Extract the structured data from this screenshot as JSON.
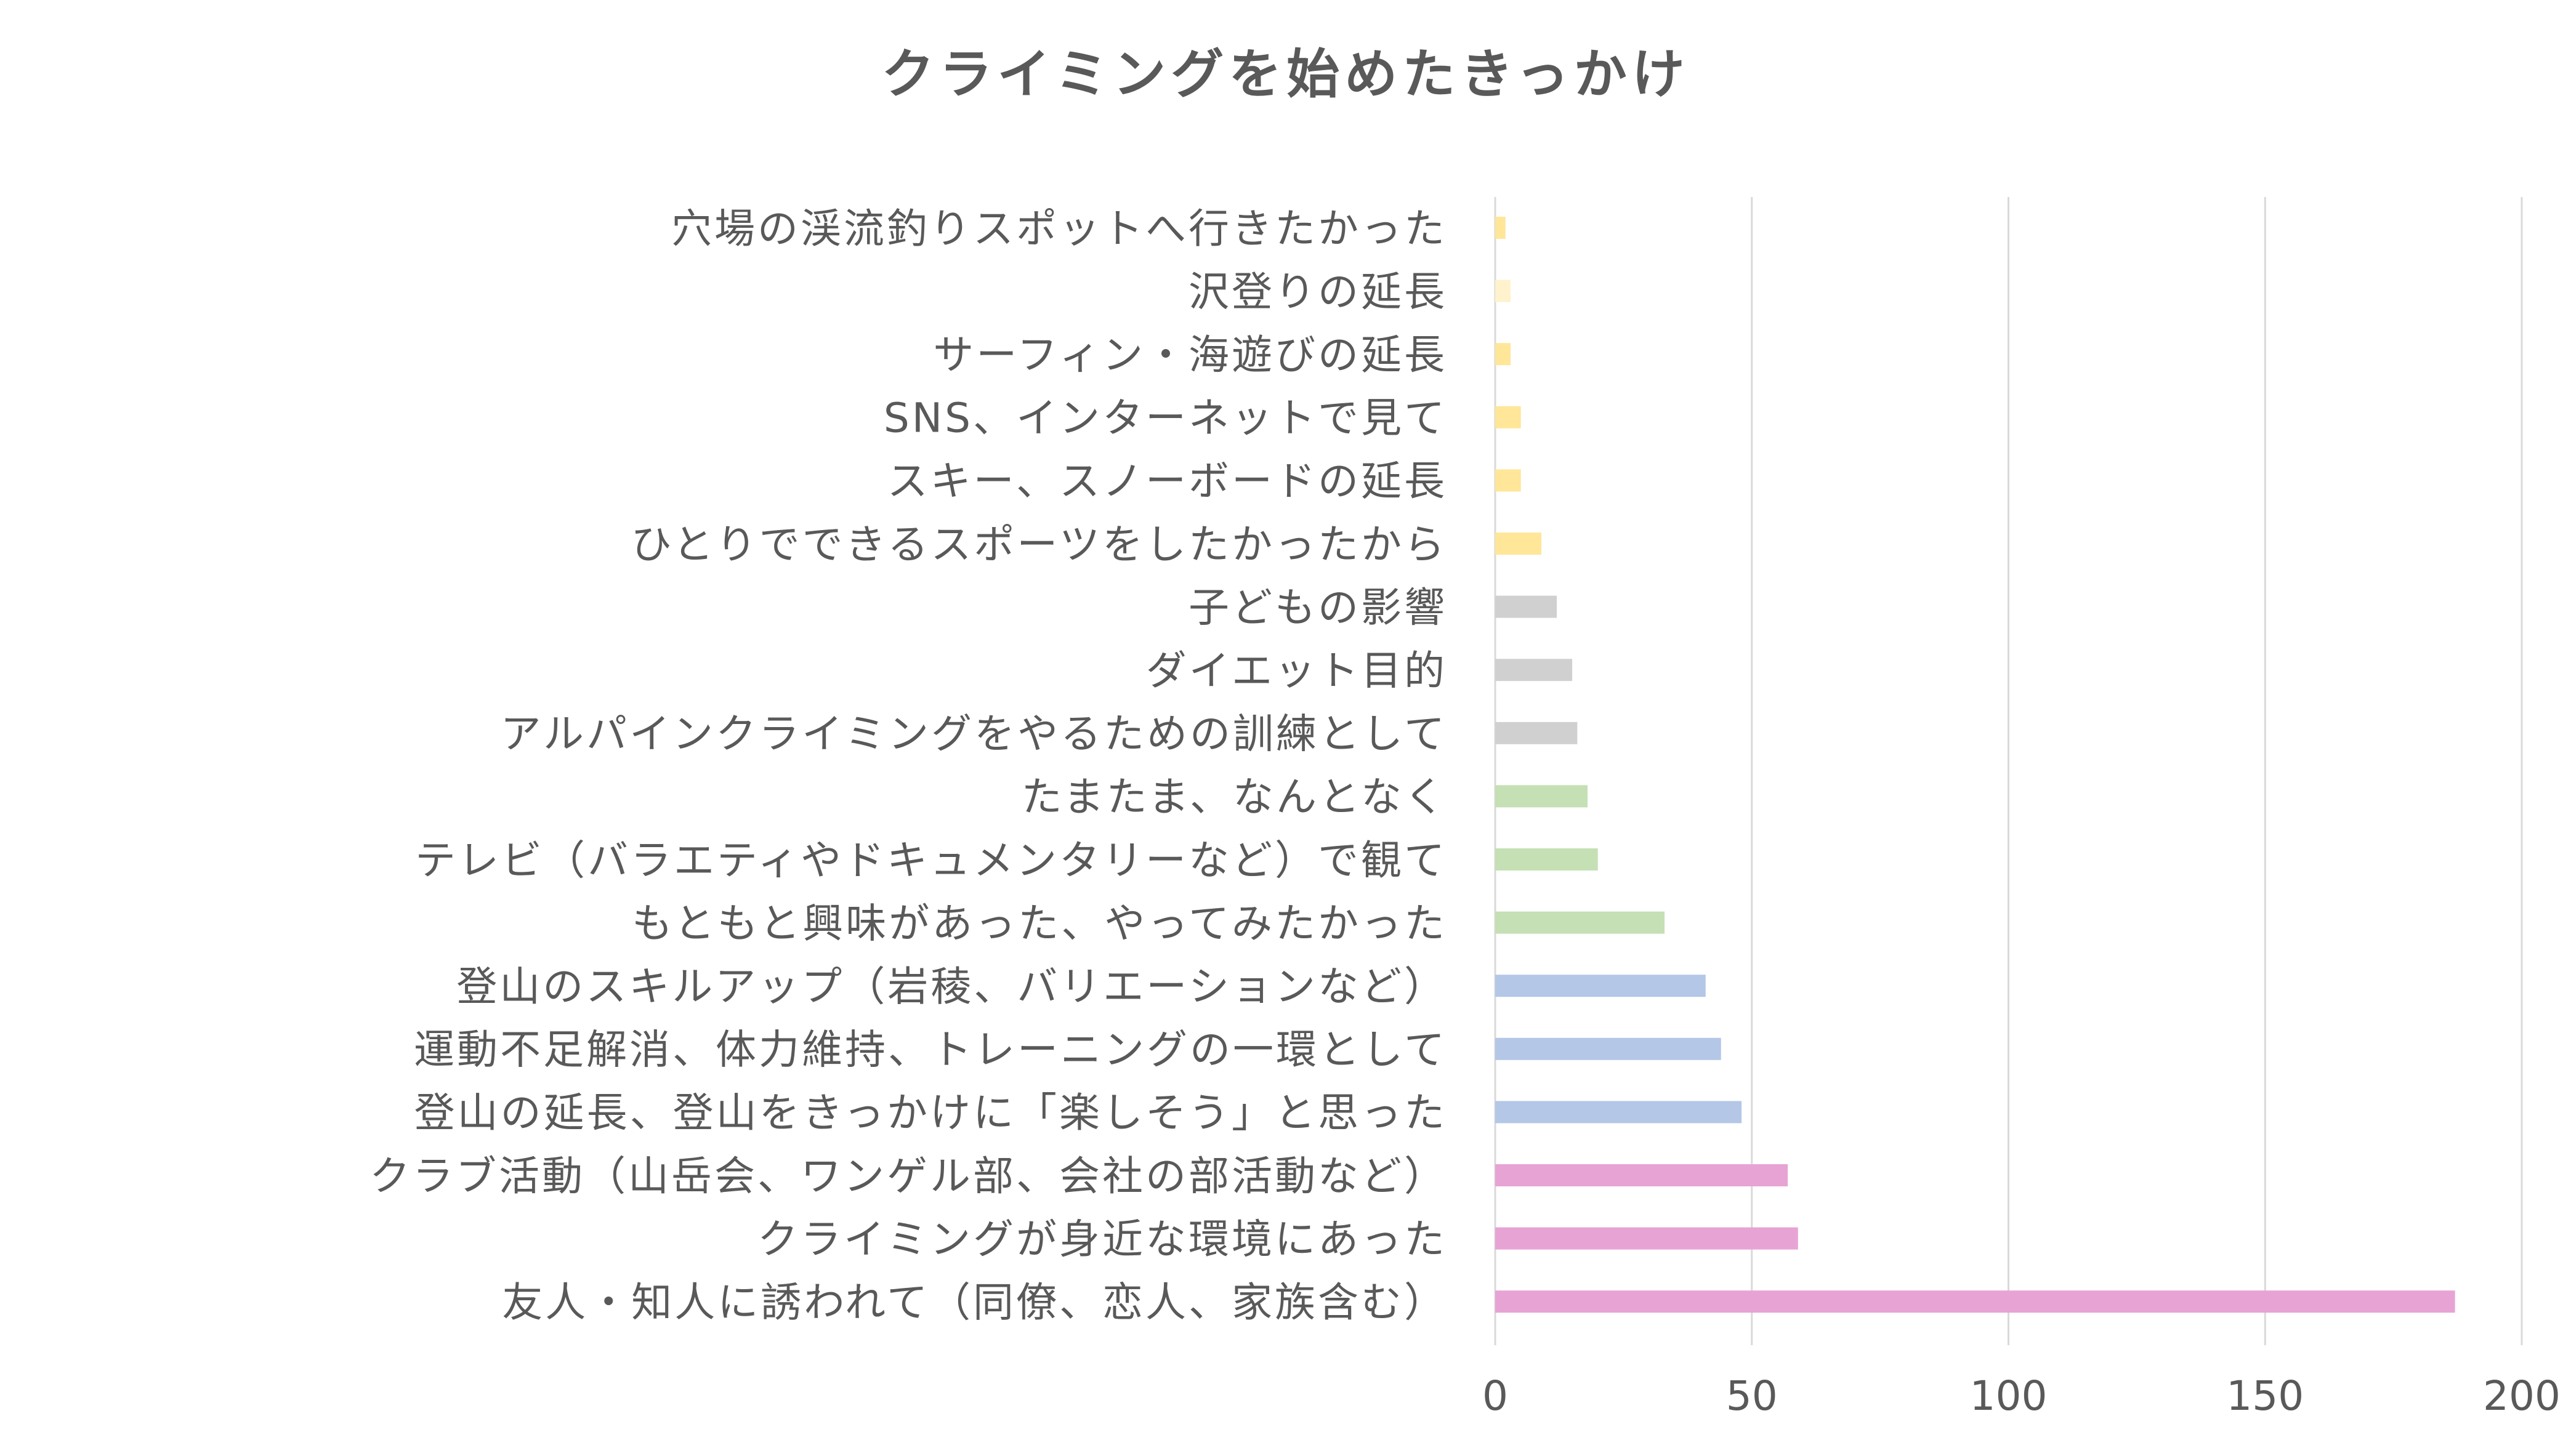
{
  "chart_data": {
    "type": "bar",
    "orientation": "horizontal",
    "title": "クライミングを始めたきっかけ",
    "xlabel": "",
    "ylabel": "",
    "xlim": [
      0,
      200
    ],
    "x_ticks": [
      0,
      50,
      100,
      150,
      200
    ],
    "grid": "vertical",
    "legend": "none",
    "categories": [
      "穴場の渓流釣りスポットへ行きたかった",
      "沢登りの延長",
      "サーフィン・海遊びの延長",
      "SNS、インターネットで見て",
      "スキー、スノーボードの延長",
      "ひとりでできるスポーツをしたかったから",
      "子どもの影響",
      "ダイエット目的",
      "アルパインクライミングをやるための訓練として",
      "たまたま、なんとなく",
      "テレビ（バラエティやドキュメンタリーなど）で観て",
      "もともと興味があった、やってみたかった",
      "登山のスキルアップ（岩稜、バリエーションなど）",
      "運動不足解消、体力維持、トレーニングの一環として",
      "登山の延長、登山をきっかけに「楽しそう」と思った",
      "クラブ活動（山岳会、ワンゲル部、会社の部活動など）",
      "クライミングが身近な環境にあった",
      "友人・知人に誘われて（同僚、恋人、家族含む）"
    ],
    "values": [
      2,
      3,
      3,
      5,
      5,
      9,
      12,
      15,
      16,
      18,
      20,
      33,
      41,
      44,
      48,
      57,
      59,
      187
    ],
    "bar_colors": [
      "#FFE699",
      "#FFF2CC",
      "#FFE699",
      "#FFE699",
      "#FFE699",
      "#FFE699",
      "#D0D0D0",
      "#D0D0D0",
      "#D0D0D0",
      "#C5E0B4",
      "#C5E0B4",
      "#C5E0B4",
      "#B4C7E7",
      "#B4C7E7",
      "#B4C7E7",
      "#E8A3D5",
      "#E8A3D5",
      "#E8A3D5"
    ],
    "grid_color": "#D9D9D9",
    "text_color": "#595959"
  }
}
